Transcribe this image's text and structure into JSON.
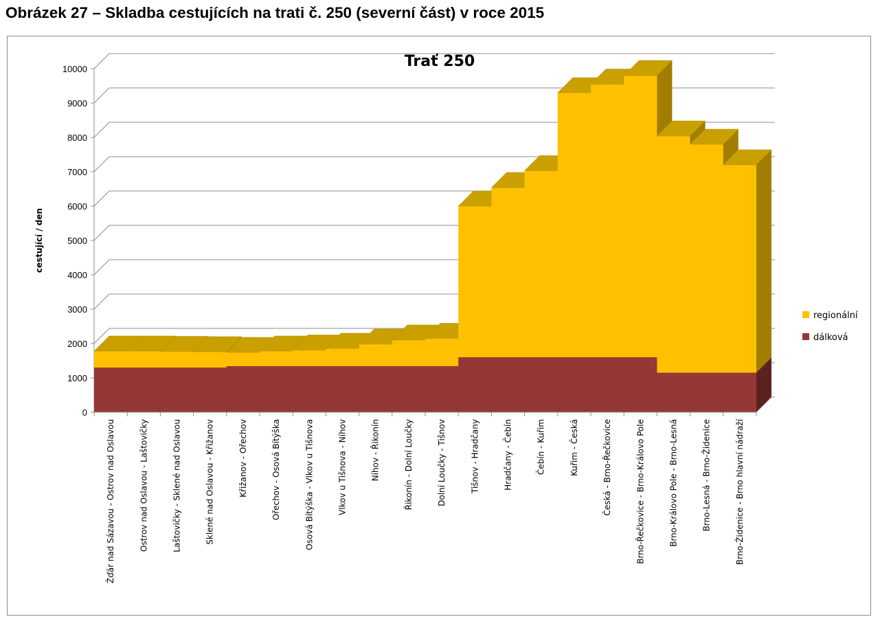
{
  "figure_caption": "Obrázek 27 – Skladba cestujících na trati č. 250 (severní část) v roce 2015",
  "chart_data": {
    "type": "bar",
    "stacked": true,
    "three_d": true,
    "title": "Trať 250",
    "xlabel": "",
    "ylabel": "cestující / den",
    "ylim": [
      0,
      10000
    ],
    "yticks": [
      0,
      1000,
      2000,
      3000,
      4000,
      5000,
      6000,
      7000,
      8000,
      9000,
      10000
    ],
    "grid": true,
    "legend_position": "right",
    "categories": [
      "Žďár nad Sázavou - Ostrov nad Oslavou",
      "Ostrov nad Oslavou - Laštovičky",
      "Laštovičky - Sklené nad Oslavou",
      "Sklené nad Oslavou - Křižanov",
      "Křižanov - Ořechov",
      "Ořechov - Osová Bítýška",
      "Osová Bítýška - Vlkov u Tišnova",
      "Vlkov u Tišnova - Níhov",
      "Níhov - Řikonín",
      "Řikonín - Dolní Loučky",
      "Dolní Loučky - Tišnov",
      "Tišnov - Hradčany",
      "Hradčany - Čebín",
      "Čebín - Kuřim",
      "Kuřim - Česká",
      "Česká - Brno-Řečkovice",
      "Brno-Řečkovice - Brno-Královo Pole",
      "Brno-Královo Pole - Brno-Lesná",
      "Brno-Lesná - Brno-Židenice",
      "Brno-Židenice - Brno hlavní nádraží"
    ],
    "series": [
      {
        "name": "dálková",
        "color": "#953735",
        "values": [
          1300,
          1300,
          1300,
          1300,
          1340,
          1340,
          1340,
          1340,
          1340,
          1340,
          1340,
          1600,
          1600,
          1600,
          1600,
          1600,
          1600,
          1150,
          1150,
          1150
        ]
      },
      {
        "name": "regionální",
        "color": "#FFC000",
        "values": [
          480,
          480,
          470,
          460,
          400,
          440,
          470,
          520,
          640,
          760,
          810,
          4400,
          4940,
          5430,
          7700,
          7950,
          8200,
          6890,
          6650,
          6050
        ]
      }
    ]
  }
}
